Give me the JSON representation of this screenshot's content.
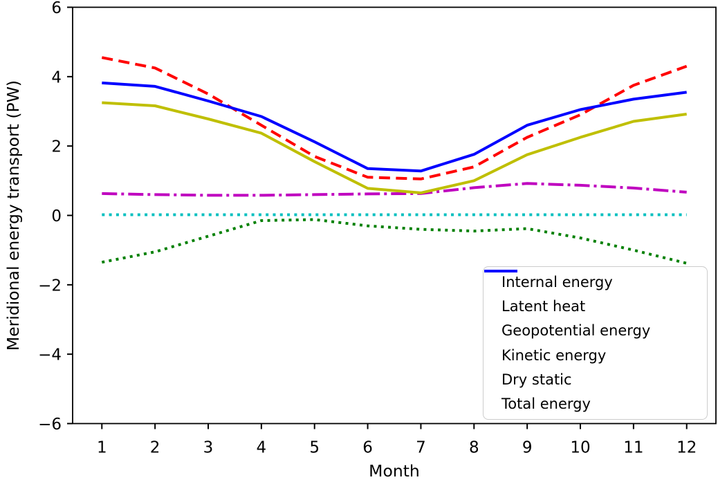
{
  "figure": {
    "background": "#ffffff",
    "axis_color": "#000000",
    "legend_border_color": "#cccccc"
  },
  "chart_data": {
    "type": "line",
    "title": "",
    "xlabel": "Month",
    "ylabel": "Meridional energy transport (PW)",
    "x": [
      1,
      2,
      3,
      4,
      5,
      6,
      7,
      8,
      9,
      10,
      11,
      12
    ],
    "xticks": [
      1,
      2,
      3,
      4,
      5,
      6,
      7,
      8,
      9,
      10,
      11,
      12
    ],
    "yticks": [
      -6,
      -4,
      -2,
      0,
      2,
      4,
      6
    ],
    "xlim": [
      0.45,
      12.55
    ],
    "ylim": [
      -6,
      6
    ],
    "grid": false,
    "legend_position": "lower right",
    "series": [
      {
        "name": "Internal energy",
        "color": "#ff0000",
        "style": "dashed",
        "values": [
          4.55,
          4.25,
          3.5,
          2.6,
          1.7,
          1.1,
          1.05,
          1.4,
          2.25,
          2.9,
          3.75,
          4.3
        ]
      },
      {
        "name": "Latent heat",
        "color": "#bf00bf",
        "style": "dashdot",
        "values": [
          0.63,
          0.6,
          0.58,
          0.58,
          0.6,
          0.62,
          0.63,
          0.8,
          0.92,
          0.87,
          0.79,
          0.67
        ]
      },
      {
        "name": "Geopotential energy",
        "color": "#008000",
        "style": "dotted",
        "values": [
          -1.35,
          -1.05,
          -0.6,
          -0.15,
          -0.12,
          -0.3,
          -0.4,
          -0.45,
          -0.38,
          -0.65,
          -1.0,
          -1.38
        ]
      },
      {
        "name": "Kinetic energy",
        "color": "#00bfbf",
        "style": "dotted",
        "values": [
          0.02,
          0.02,
          0.02,
          0.02,
          0.02,
          0.02,
          0.02,
          0.02,
          0.02,
          0.02,
          0.02,
          0.02
        ]
      },
      {
        "name": "Dry static",
        "color": "#bfbf00",
        "style": "solid",
        "values": [
          3.25,
          3.16,
          2.78,
          2.37,
          1.55,
          0.78,
          0.65,
          1.0,
          1.75,
          2.25,
          2.71,
          2.92
        ]
      },
      {
        "name": "Total energy",
        "color": "#0000ff",
        "style": "solid",
        "values": [
          3.82,
          3.72,
          3.3,
          2.85,
          2.12,
          1.35,
          1.28,
          1.76,
          2.6,
          3.05,
          3.35,
          3.55
        ]
      }
    ]
  }
}
